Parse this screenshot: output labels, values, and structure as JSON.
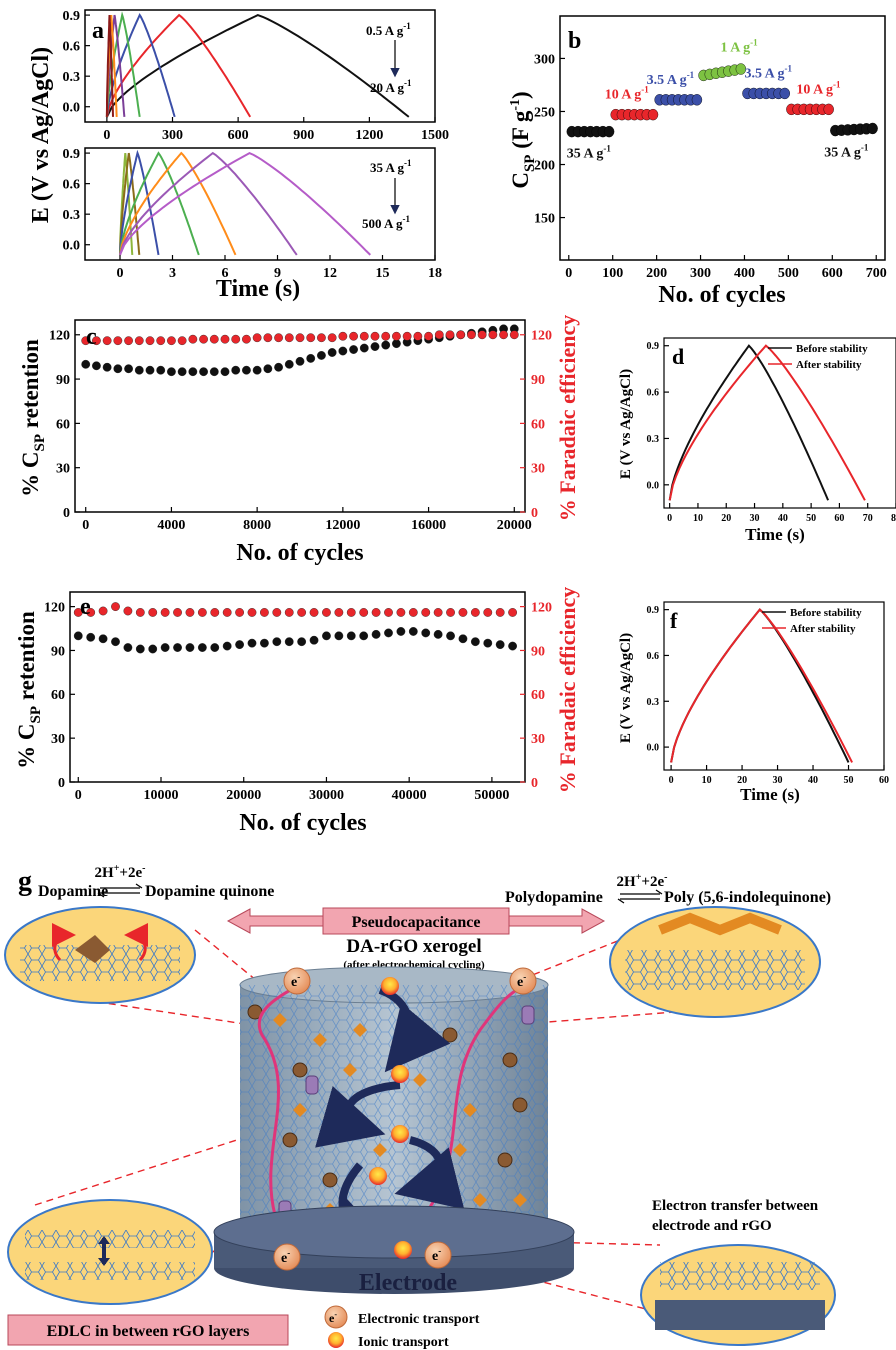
{
  "panels": {
    "a": {
      "letter": "a",
      "ylabel": "E (V vs Ag/AgCl)",
      "xlabel": "Time (s)",
      "top_rate_hi": "0.5 A g",
      "top_rate_lo": "20 A g",
      "bot_rate_hi": "35 A g",
      "bot_rate_lo": "500 A g",
      "sup": "-1"
    },
    "b": {
      "letter": "b",
      "ylabel": "C",
      "ylabel_sub": "SP",
      "ylabel_unit": " (F g",
      "ylabel_sup": "-1",
      "ylabel_close": ")",
      "xlabel": "No. of cycles"
    },
    "c": {
      "letter": "c",
      "ylabel": "% C",
      "ylabel_sub": "SP",
      "ylabel_rest": " retention",
      "y2label": "% Faradaic efficiency",
      "xlabel": "No. of cycles"
    },
    "d": {
      "letter": "d",
      "ylabel": "E (V vs Ag/AgCl)",
      "xlabel": "Time (s)"
    },
    "e": {
      "letter": "e",
      "ylabel": "% C",
      "ylabel_sub": "SP",
      "ylabel_rest": " retention",
      "y2label": "% Faradaic efficiency",
      "xlabel": "No. of cycles"
    },
    "f": {
      "letter": "f",
      "ylabel": "E (V vs Ag/AgCl)",
      "xlabel": "Time (s)"
    }
  },
  "chart_data": [
    {
      "id": "a_top",
      "type": "line",
      "xlim": [
        -100,
        1500
      ],
      "ylim": [
        -0.15,
        0.95
      ],
      "xticks": [
        "0",
        "300",
        "600",
        "900",
        "1200",
        "1500"
      ],
      "yticks": [
        "0.0",
        "0.3",
        "0.6",
        "0.9"
      ],
      "series": [
        {
          "color": "#111111",
          "peak_t": 690,
          "end_t": 1380
        },
        {
          "color": "#e8262b",
          "peak_t": 330,
          "end_t": 655
        },
        {
          "color": "#3b4fa8",
          "peak_t": 150,
          "end_t": 310
        },
        {
          "color": "#4caf50",
          "peak_t": 70,
          "end_t": 150
        },
        {
          "color": "#7b3f98",
          "peak_t": 35,
          "end_t": 80
        },
        {
          "color": "#ff8c1a",
          "peak_t": 20,
          "end_t": 45
        },
        {
          "color": "#8b1a1a",
          "peak_t": 12,
          "end_t": 28
        }
      ]
    },
    {
      "id": "a_bot",
      "type": "line",
      "xlim": [
        -2,
        18
      ],
      "ylim": [
        -0.15,
        0.95
      ],
      "xticks": [
        "0",
        "3",
        "6",
        "9",
        "12",
        "15",
        "18"
      ],
      "yticks": [
        "0.0",
        "0.3",
        "0.6",
        "0.9"
      ],
      "series": [
        {
          "color": "#8db63c",
          "peak_t": 0.3,
          "end_t": 0.7
        },
        {
          "color": "#8b6d1a",
          "peak_t": 0.5,
          "end_t": 1.1
        },
        {
          "color": "#3b4fa8",
          "peak_t": 1.0,
          "end_t": 2.2
        },
        {
          "color": "#4caf50",
          "peak_t": 2.2,
          "end_t": 4.5
        },
        {
          "color": "#ff8c1a",
          "peak_t": 3.5,
          "end_t": 6.6
        },
        {
          "color": "#9b59b6",
          "peak_t": 5.3,
          "end_t": 10.1
        },
        {
          "color": "#b55cc8",
          "peak_t": 7.4,
          "end_t": 14.3
        }
      ]
    },
    {
      "id": "b",
      "type": "scatter",
      "xlim": [
        -20,
        720
      ],
      "ylim": [
        110,
        340
      ],
      "xticks": [
        "0",
        "100",
        "200",
        "300",
        "400",
        "500",
        "600",
        "700"
      ],
      "yticks": [
        "150",
        "200",
        "250",
        "300"
      ],
      "segments": [
        {
          "label": "35 A g",
          "color": "#111111",
          "x0": 0,
          "x1": 99,
          "y0": 231,
          "y1": 231
        },
        {
          "label": "10 A g",
          "color": "#e8262b",
          "x0": 100,
          "x1": 199,
          "y0": 247,
          "y1": 247
        },
        {
          "label": "3.5 A g",
          "color": "#3b4fa8",
          "x0": 200,
          "x1": 299,
          "y0": 261,
          "y1": 261
        },
        {
          "label": "1 A g",
          "color": "#7dc242",
          "x0": 300,
          "x1": 399,
          "y0": 284,
          "y1": 290
        },
        {
          "label": "3.5 A g",
          "color": "#3b4fa8",
          "x0": 400,
          "x1": 499,
          "y0": 267,
          "y1": 267
        },
        {
          "label": "10 A g",
          "color": "#e8262b",
          "x0": 500,
          "x1": 599,
          "y0": 252,
          "y1": 252
        },
        {
          "label": "35 A g",
          "color": "#111111",
          "x0": 600,
          "x1": 699,
          "y0": 232,
          "y1": 234
        }
      ]
    },
    {
      "id": "c",
      "type": "scatter",
      "xlim": [
        -500,
        20500
      ],
      "ylim": [
        0,
        130
      ],
      "y2lim": [
        0,
        130
      ],
      "xticks": [
        "0",
        "4000",
        "8000",
        "12000",
        "16000",
        "20000"
      ],
      "yticks": [
        "0",
        "30",
        "60",
        "90",
        "120"
      ],
      "y2ticks": [
        "0",
        "30",
        "60",
        "90",
        "120"
      ],
      "series": [
        {
          "name": "% Csp retention",
          "color": "#111111",
          "x": [
            0,
            500,
            1000,
            1500,
            2000,
            2500,
            3000,
            3500,
            4000,
            4500,
            5000,
            5500,
            6000,
            6500,
            7000,
            7500,
            8000,
            8500,
            9000,
            9500,
            10000,
            10500,
            11000,
            11500,
            12000,
            12500,
            13000,
            13500,
            14000,
            14500,
            15000,
            15500,
            16000,
            16500,
            17000,
            17500,
            18000,
            18500,
            19000,
            19500,
            20000
          ],
          "y": [
            100,
            99,
            98,
            97,
            97,
            96,
            96,
            96,
            95,
            95,
            95,
            95,
            95,
            95,
            96,
            96,
            96,
            97,
            98,
            100,
            102,
            104,
            106,
            108,
            109,
            110,
            111,
            112,
            113,
            114,
            115,
            116,
            117,
            118,
            119,
            120,
            121,
            122,
            123,
            124,
            124
          ]
        },
        {
          "name": "% Faradaic efficiency",
          "color": "#e8262b",
          "x": [
            0,
            500,
            1000,
            1500,
            2000,
            2500,
            3000,
            3500,
            4000,
            4500,
            5000,
            5500,
            6000,
            6500,
            7000,
            7500,
            8000,
            8500,
            9000,
            9500,
            10000,
            10500,
            11000,
            11500,
            12000,
            12500,
            13000,
            13500,
            14000,
            14500,
            15000,
            15500,
            16000,
            16500,
            17000,
            17500,
            18000,
            18500,
            19000,
            19500,
            20000
          ],
          "y": [
            116,
            116,
            116,
            116,
            116,
            116,
            116,
            116,
            116,
            116,
            117,
            117,
            117,
            117,
            117,
            117,
            118,
            118,
            118,
            118,
            118,
            118,
            118,
            118,
            119,
            119,
            119,
            119,
            119,
            119,
            119,
            119,
            119,
            120,
            120,
            120,
            120,
            120,
            120,
            120,
            120
          ]
        }
      ]
    },
    {
      "id": "d",
      "type": "line",
      "xlim": [
        -2,
        80
      ],
      "ylim": [
        -0.15,
        0.95
      ],
      "xticks": [
        "0",
        "10",
        "20",
        "30",
        "40",
        "50",
        "60",
        "70",
        "80"
      ],
      "yticks": [
        "0.0",
        "0.3",
        "0.6",
        "0.9"
      ],
      "series": [
        {
          "name": "Before stability",
          "color": "#111111",
          "peak_t": 28,
          "end_t": 56
        },
        {
          "name": "After stability",
          "color": "#e8262b",
          "peak_t": 34,
          "end_t": 69
        }
      ]
    },
    {
      "id": "e",
      "type": "scatter",
      "xlim": [
        -1000,
        54000
      ],
      "ylim": [
        0,
        130
      ],
      "y2lim": [
        0,
        130
      ],
      "xticks": [
        "0",
        "10000",
        "20000",
        "30000",
        "40000",
        "50000"
      ],
      "yticks": [
        "0",
        "30",
        "60",
        "90",
        "120"
      ],
      "y2ticks": [
        "0",
        "30",
        "60",
        "90",
        "120"
      ],
      "series": [
        {
          "name": "% Csp retention",
          "color": "#111111",
          "x": [
            0,
            1500,
            3000,
            4500,
            6000,
            7500,
            9000,
            10500,
            12000,
            13500,
            15000,
            16500,
            18000,
            19500,
            21000,
            22500,
            24000,
            25500,
            27000,
            28500,
            30000,
            31500,
            33000,
            34500,
            36000,
            37500,
            39000,
            40500,
            42000,
            43500,
            45000,
            46500,
            48000,
            49500,
            51000,
            52500
          ],
          "y": [
            100,
            99,
            98,
            96,
            92,
            91,
            91,
            92,
            92,
            92,
            92,
            92,
            93,
            94,
            95,
            95,
            96,
            96,
            96,
            97,
            100,
            100,
            100,
            100,
            101,
            102,
            103,
            103,
            102,
            101,
            100,
            98,
            96,
            95,
            94,
            93
          ]
        },
        {
          "name": "% Faradaic efficiency",
          "color": "#e8262b",
          "x": [
            0,
            1500,
            3000,
            4500,
            6000,
            7500,
            9000,
            10500,
            12000,
            13500,
            15000,
            16500,
            18000,
            19500,
            21000,
            22500,
            24000,
            25500,
            27000,
            28500,
            30000,
            31500,
            33000,
            34500,
            36000,
            37500,
            39000,
            40500,
            42000,
            43500,
            45000,
            46500,
            48000,
            49500,
            51000,
            52500
          ],
          "y": [
            116,
            116,
            117,
            120,
            117,
            116,
            116,
            116,
            116,
            116,
            116,
            116,
            116,
            116,
            116,
            116,
            116,
            116,
            116,
            116,
            116,
            116,
            116,
            116,
            116,
            116,
            116,
            116,
            116,
            116,
            116,
            116,
            116,
            116,
            116,
            116
          ]
        }
      ]
    },
    {
      "id": "f",
      "type": "line",
      "xlim": [
        -2,
        60
      ],
      "ylim": [
        -0.15,
        0.95
      ],
      "xticks": [
        "0",
        "10",
        "20",
        "30",
        "40",
        "50",
        "60"
      ],
      "yticks": [
        "0.0",
        "0.3",
        "0.6",
        "0.9"
      ],
      "series": [
        {
          "name": "Before stability",
          "color": "#111111",
          "peak_t": 25,
          "end_t": 50
        },
        {
          "name": "After stability",
          "color": "#e8262b",
          "peak_t": 25,
          "end_t": 51
        }
      ]
    }
  ],
  "scheme": {
    "letter": "g",
    "left_reaction_reactant": "Dopamine",
    "left_reaction_product": "Dopamine quinone",
    "reaction_above": "2H",
    "reaction_above_sup": "+",
    "reaction_above_rest": "+2e",
    "reaction_above_sup2": "-",
    "right_reaction_reactant": "Polydopamine",
    "right_reaction_product": "Poly (5,6-indolequinone)",
    "pseudo_label": "Pseudocapacitance",
    "xerogel_title": "DA-rGO xerogel",
    "xerogel_sub": "(after electrochemical cycling)",
    "electrode_label": "Electrode",
    "electron_transfer_line1": "Electron transfer between",
    "electron_transfer_line2": "electrode and rGO",
    "edlc_label": "EDLC in between rGO layers",
    "legend_electronic": "Electronic transport",
    "legend_ionic": "Ionic transport",
    "electron_symbol": "e",
    "electron_sup": "-"
  },
  "colors": {
    "black": "#111111",
    "red": "#e8262b",
    "blue": "#3b4fa8",
    "green": "#7dc242",
    "pink": "#f2a5b0",
    "cyl": "#9aaab8",
    "disk": "#4a5a78"
  }
}
